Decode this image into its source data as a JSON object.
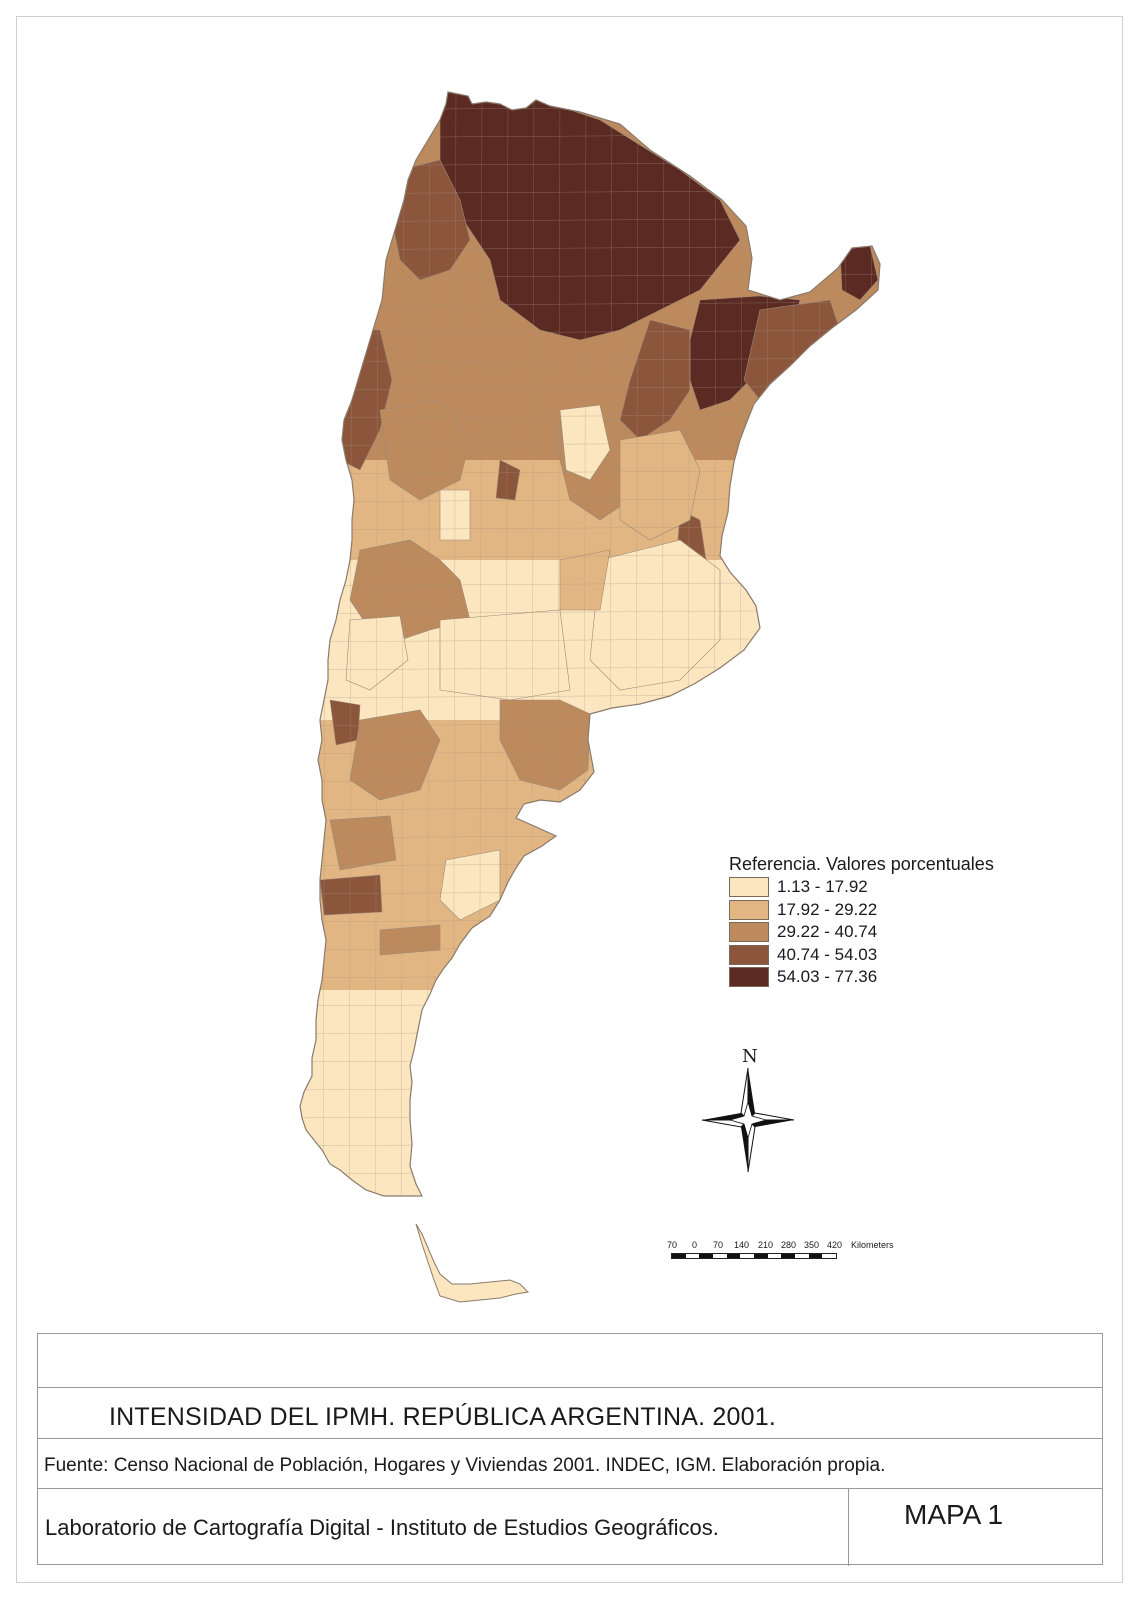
{
  "legend": {
    "title": "Referencia. Valores porcentuales",
    "classes": [
      {
        "label": "1.13 - 17.92",
        "color": "#fbe6c0"
      },
      {
        "label": "17.92 - 29.22",
        "color": "#e2b682"
      },
      {
        "label": "29.22 - 40.74",
        "color": "#bc8a5d"
      },
      {
        "label": "40.74 - 54.03",
        "color": "#8c563d"
      },
      {
        "label": "54.03 - 77.36",
        "color": "#5b2a22"
      }
    ]
  },
  "north_arrow": {
    "label": "N"
  },
  "scale_bar": {
    "ticks": [
      "70",
      "0",
      "70",
      "140",
      "210",
      "280",
      "350",
      "420"
    ],
    "unit": "Kilometers"
  },
  "title_block": {
    "title": "INTENSIDAD DEL IPMH. REPÚBLICA ARGENTINA. 2001.",
    "source": "Fuente: Censo Nacional de Población, Hogares y Viviendas 2001. INDEC, IGM. Elaboración propia.",
    "lab": "Laboratorio de Cartografía Digital - Instituto de Estudios Geográficos.",
    "map_number": "MAPA 1"
  }
}
